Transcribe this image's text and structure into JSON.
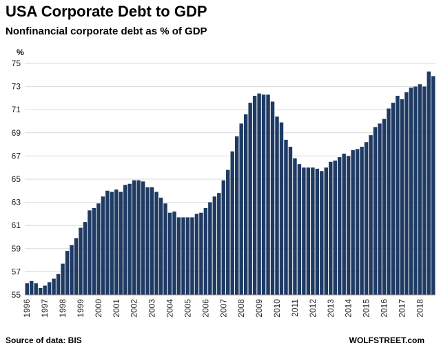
{
  "chart_data": {
    "type": "bar",
    "title": "USA Corporate  Debt to GDP",
    "subtitle": "Nonfinancial corporate debt as % of GDP",
    "y_label": "%",
    "source": "Source of data: BIS",
    "watermark": "WOLFSTREET.com",
    "color": "#1f3a63",
    "grid": true,
    "ylim": [
      55,
      75
    ],
    "yticks": [
      55,
      57,
      59,
      61,
      63,
      65,
      67,
      69,
      71,
      73,
      75
    ],
    "categories": [
      "1996",
      null,
      null,
      null,
      "1997",
      null,
      null,
      null,
      "1998",
      null,
      null,
      null,
      "1999",
      null,
      null,
      null,
      "2000",
      null,
      null,
      null,
      "2001",
      null,
      null,
      null,
      "2002",
      null,
      null,
      null,
      "2003",
      null,
      null,
      null,
      "2004",
      null,
      null,
      null,
      "2005",
      null,
      null,
      null,
      "2006",
      null,
      null,
      null,
      "2007",
      null,
      null,
      null,
      "2008",
      null,
      null,
      null,
      "2009",
      null,
      null,
      null,
      "2010",
      null,
      null,
      null,
      "2011",
      null,
      null,
      null,
      "2012",
      null,
      null,
      null,
      "2013",
      null,
      null,
      null,
      "2014",
      null,
      null,
      null,
      "2015",
      null,
      null,
      null,
      "2016",
      null,
      null,
      null,
      "2017",
      null,
      null,
      null,
      "2018",
      null,
      null,
      null
    ],
    "values": [
      56.0,
      56.2,
      56.0,
      55.6,
      55.8,
      56.1,
      56.4,
      56.8,
      57.7,
      58.8,
      59.3,
      59.9,
      60.8,
      61.3,
      62.3,
      62.5,
      62.9,
      63.5,
      64.0,
      63.9,
      64.1,
      63.9,
      64.5,
      64.6,
      64.9,
      64.9,
      64.8,
      64.3,
      64.3,
      63.9,
      63.4,
      62.9,
      62.1,
      62.2,
      61.7,
      61.7,
      61.7,
      61.7,
      62.0,
      62.1,
      62.5,
      63.0,
      63.5,
      63.8,
      64.9,
      65.8,
      67.4,
      68.7,
      69.8,
      70.6,
      71.6,
      72.2,
      72.4,
      72.3,
      72.3,
      71.7,
      70.4,
      69.9,
      68.4,
      67.8,
      66.8,
      66.3,
      66.0,
      66.0,
      66.0,
      65.9,
      65.7,
      66.0,
      66.5,
      66.6,
      66.9,
      67.2,
      67.0,
      67.5,
      67.6,
      67.8,
      68.2,
      68.8,
      69.5,
      69.8,
      70.2,
      71.1,
      71.6,
      72.2,
      71.9,
      72.5,
      72.9,
      73.0,
      73.2,
      73.0,
      74.3,
      73.9
    ]
  }
}
